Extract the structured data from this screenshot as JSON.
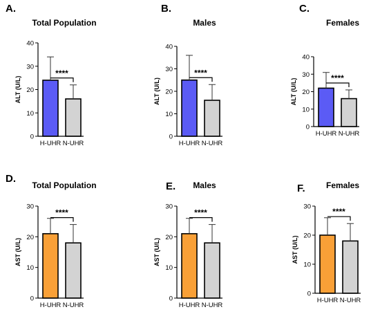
{
  "chart_data": [
    {
      "letter": "A.",
      "title": "Total Population",
      "type": "bar",
      "ylabel": "ALT (U/L)",
      "categories": [
        "H-UHR",
        "N-UHR"
      ],
      "values": [
        24,
        16
      ],
      "errors_upper": [
        34,
        22
      ],
      "ylim": [
        0,
        40
      ],
      "yticks": [
        0,
        10,
        20,
        30,
        40
      ],
      "significance": "****",
      "colors": [
        "#5b5bf5",
        "#d3d3d3"
      ]
    },
    {
      "letter": "B.",
      "title": "Males",
      "type": "bar",
      "ylabel": "ALT (U/L)",
      "categories": [
        "H-UHR",
        "N-UHR"
      ],
      "values": [
        25,
        16
      ],
      "errors_upper": [
        36,
        23
      ],
      "ylim": [
        0,
        40
      ],
      "yticks": [
        0,
        10,
        20,
        30,
        40
      ],
      "significance": "****",
      "colors": [
        "#5b5bf5",
        "#d3d3d3"
      ]
    },
    {
      "letter": "C.",
      "title": "Females",
      "type": "bar",
      "ylabel": "ALT (U/L)",
      "categories": [
        "H-UHR",
        "N-UHR"
      ],
      "values": [
        22,
        16
      ],
      "errors_upper": [
        31,
        21
      ],
      "ylim": [
        0,
        40
      ],
      "yticks": [
        0,
        10,
        20,
        30,
        40
      ],
      "significance": "****",
      "colors": [
        "#5b5bf5",
        "#d3d3d3"
      ]
    },
    {
      "letter": "D.",
      "title": "Total Population",
      "type": "bar",
      "ylabel": "AST (U/L)",
      "categories": [
        "H-UHR",
        "N-UHR"
      ],
      "values": [
        21,
        18
      ],
      "errors_upper": [
        26,
        24
      ],
      "ylim": [
        0,
        30
      ],
      "yticks": [
        0,
        10,
        20,
        30
      ],
      "significance": "****",
      "colors": [
        "#f9a037",
        "#d3d3d3"
      ]
    },
    {
      "letter": "E.",
      "title": "Males",
      "type": "bar",
      "ylabel": "AST (U/L)",
      "categories": [
        "H-UHR",
        "N-UHR"
      ],
      "values": [
        21,
        18
      ],
      "errors_upper": [
        26,
        24
      ],
      "ylim": [
        0,
        30
      ],
      "yticks": [
        0,
        10,
        20,
        30
      ],
      "significance": "****",
      "colors": [
        "#f9a037",
        "#d3d3d3"
      ]
    },
    {
      "letter": "F.",
      "title": "Females",
      "type": "bar",
      "ylabel": "AST (U/L)",
      "categories": [
        "H-UHR",
        "N-UHR"
      ],
      "values": [
        20,
        18
      ],
      "errors_upper": [
        26,
        24
      ],
      "ylim": [
        0,
        30
      ],
      "yticks": [
        0,
        10,
        20,
        30
      ],
      "significance": "****",
      "colors": [
        "#f9a037",
        "#d3d3d3"
      ]
    }
  ]
}
